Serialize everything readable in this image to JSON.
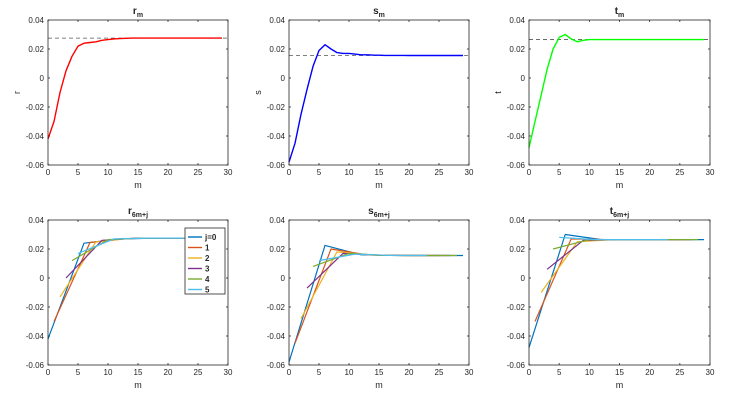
{
  "chart_data": [
    {
      "id": "rm",
      "type": "line",
      "title": "r",
      "title_sub": "m",
      "xlabel": "m",
      "ylabel": "r",
      "xlim": [
        0,
        30
      ],
      "ylim": [
        -0.06,
        0.04
      ],
      "xticks": [
        "0",
        "5",
        "10",
        "15",
        "20",
        "25",
        "30"
      ],
      "yticks": [
        "-0.06",
        "-0.04",
        "-0.02",
        "0",
        "0.02",
        "0.04"
      ],
      "reference": 0.0275,
      "series": [
        {
          "name": "r_m",
          "color": "#ff0000",
          "x": [
            0,
            1,
            2,
            3,
            4,
            5,
            6,
            7,
            8,
            9,
            10,
            11,
            12,
            13,
            14,
            15,
            16,
            17,
            18,
            19,
            20,
            21,
            22,
            23,
            24,
            25,
            26,
            27,
            28,
            29
          ],
          "y": [
            -0.042,
            -0.03,
            -0.01,
            0.005,
            0.015,
            0.022,
            0.024,
            0.0245,
            0.025,
            0.026,
            0.0265,
            0.027,
            0.0272,
            0.0274,
            0.0275,
            0.0275,
            0.0275,
            0.0275,
            0.0275,
            0.0275,
            0.0275,
            0.0275,
            0.0275,
            0.0275,
            0.0275,
            0.0275,
            0.0275,
            0.0275,
            0.0275,
            0.0275
          ]
        }
      ]
    },
    {
      "id": "sm",
      "type": "line",
      "title": "s",
      "title_sub": "m",
      "xlabel": "m",
      "ylabel": "s",
      "xlim": [
        0,
        30
      ],
      "ylim": [
        -0.06,
        0.04
      ],
      "xticks": [
        "0",
        "5",
        "10",
        "15",
        "20",
        "25",
        "30"
      ],
      "yticks": [
        "-0.06",
        "-0.04",
        "-0.02",
        "0",
        "0.02",
        "0.04"
      ],
      "reference": 0.0155,
      "series": [
        {
          "name": "s_m",
          "color": "#0000ff",
          "x": [
            0,
            1,
            2,
            3,
            4,
            5,
            6,
            7,
            8,
            9,
            10,
            11,
            12,
            13,
            14,
            15,
            16,
            17,
            18,
            19,
            20,
            21,
            22,
            23,
            24,
            25,
            26,
            27,
            28,
            29
          ],
          "y": [
            -0.058,
            -0.045,
            -0.025,
            -0.008,
            0.008,
            0.019,
            0.023,
            0.02,
            0.0175,
            0.017,
            0.017,
            0.0165,
            0.016,
            0.016,
            0.0158,
            0.0157,
            0.0156,
            0.0156,
            0.0156,
            0.0156,
            0.0155,
            0.0155,
            0.0155,
            0.0155,
            0.0155,
            0.0155,
            0.0155,
            0.0155,
            0.0155,
            0.0155
          ]
        }
      ]
    },
    {
      "id": "tm",
      "type": "line",
      "title": "t",
      "title_sub": "m",
      "xlabel": "m",
      "ylabel": "t",
      "xlim": [
        0,
        30
      ],
      "ylim": [
        -0.06,
        0.04
      ],
      "xticks": [
        "0",
        "5",
        "10",
        "15",
        "20",
        "25",
        "30"
      ],
      "yticks": [
        "-0.06",
        "-0.04",
        "-0.02",
        "0",
        "0.02",
        "0.04"
      ],
      "reference": 0.0265,
      "series": [
        {
          "name": "t_m",
          "color": "#00ff00",
          "x": [
            0,
            1,
            2,
            3,
            4,
            5,
            6,
            7,
            8,
            9,
            10,
            11,
            12,
            13,
            14,
            15,
            16,
            17,
            18,
            19,
            20,
            21,
            22,
            23,
            24,
            25,
            26,
            27,
            28,
            29
          ],
          "y": [
            -0.048,
            -0.03,
            -0.012,
            0.006,
            0.02,
            0.028,
            0.03,
            0.027,
            0.025,
            0.026,
            0.0265,
            0.0265,
            0.0265,
            0.0265,
            0.0265,
            0.0265,
            0.0265,
            0.0265,
            0.0265,
            0.0265,
            0.0265,
            0.0265,
            0.0265,
            0.0265,
            0.0265,
            0.0265,
            0.0265,
            0.0265,
            0.0265,
            0.0265
          ]
        }
      ]
    },
    {
      "id": "r6",
      "type": "line",
      "title": "r",
      "title_sub": "6m+j",
      "xlabel": "m",
      "ylabel": "",
      "xlim": [
        0,
        30
      ],
      "ylim": [
        -0.06,
        0.04
      ],
      "xticks": [
        "0",
        "5",
        "10",
        "15",
        "20",
        "25",
        "30"
      ],
      "yticks": [
        "-0.06",
        "-0.04",
        "-0.02",
        "0",
        "0.02",
        "0.04"
      ],
      "legend": {
        "position": "inside-left"
      },
      "series": [
        {
          "name": "j=0",
          "color": "#0072bd",
          "x": [
            0,
            6,
            12,
            18,
            24,
            29
          ],
          "y": [
            -0.042,
            0.024,
            0.027,
            0.0275,
            0.0275,
            0.0275
          ]
        },
        {
          "name": "1",
          "color": "#d95319",
          "x": [
            1,
            7,
            13,
            19,
            25
          ],
          "y": [
            -0.03,
            0.0245,
            0.0272,
            0.0275,
            0.0275
          ]
        },
        {
          "name": "2",
          "color": "#edb120",
          "x": [
            2,
            8,
            14,
            20,
            26
          ],
          "y": [
            -0.013,
            0.025,
            0.0274,
            0.0275,
            0.0275
          ]
        },
        {
          "name": "3",
          "color": "#7e2f8e",
          "x": [
            3,
            9,
            15,
            21,
            27
          ],
          "y": [
            0,
            0.026,
            0.0275,
            0.0275,
            0.0275
          ]
        },
        {
          "name": "4",
          "color": "#77ac30",
          "x": [
            4,
            10,
            16,
            22,
            28
          ],
          "y": [
            0.012,
            0.0265,
            0.0275,
            0.0275,
            0.0275
          ]
        },
        {
          "name": "5",
          "color": "#4dbeee",
          "x": [
            5,
            11,
            17,
            23
          ],
          "y": [
            0.017,
            0.027,
            0.0275,
            0.0275
          ]
        }
      ]
    },
    {
      "id": "s6",
      "type": "line",
      "title": "s",
      "title_sub": "6m+j",
      "xlabel": "m",
      "ylabel": "",
      "xlim": [
        0,
        30
      ],
      "ylim": [
        -0.06,
        0.04
      ],
      "xticks": [
        "0",
        "5",
        "10",
        "15",
        "20",
        "25",
        "30"
      ],
      "yticks": [
        "-0.06",
        "-0.04",
        "-0.02",
        "0",
        "0.02",
        "0.04"
      ],
      "series": [
        {
          "name": "j=0",
          "color": "#0072bd",
          "x": [
            0,
            6,
            12,
            18,
            24,
            29
          ],
          "y": [
            -0.058,
            0.0225,
            0.016,
            0.0155,
            0.0155,
            0.0155
          ]
        },
        {
          "name": "1",
          "color": "#d95319",
          "x": [
            1,
            7,
            13,
            19,
            25
          ],
          "y": [
            -0.045,
            0.02,
            0.016,
            0.0155,
            0.0155
          ]
        },
        {
          "name": "2",
          "color": "#edb120",
          "x": [
            2,
            8,
            14,
            20,
            26
          ],
          "y": [
            -0.028,
            0.018,
            0.0158,
            0.0155,
            0.0155
          ]
        },
        {
          "name": "3",
          "color": "#7e2f8e",
          "x": [
            3,
            9,
            15,
            21,
            27
          ],
          "y": [
            -0.007,
            0.017,
            0.0157,
            0.0155,
            0.0155
          ]
        },
        {
          "name": "4",
          "color": "#77ac30",
          "x": [
            4,
            10,
            16,
            22,
            28
          ],
          "y": [
            0.008,
            0.017,
            0.0156,
            0.0155,
            0.0155
          ]
        },
        {
          "name": "5",
          "color": "#4dbeee",
          "x": [
            5,
            11,
            17,
            23
          ],
          "y": [
            0.012,
            0.0165,
            0.0156,
            0.0155
          ]
        }
      ]
    },
    {
      "id": "t6",
      "type": "line",
      "title": "t",
      "title_sub": "6m+j",
      "xlabel": "m",
      "ylabel": "",
      "xlim": [
        0,
        30
      ],
      "ylim": [
        -0.06,
        0.04
      ],
      "xticks": [
        "0",
        "5",
        "10",
        "15",
        "20",
        "25",
        "30"
      ],
      "yticks": [
        "-0.06",
        "-0.04",
        "-0.02",
        "0",
        "0.02",
        "0.04"
      ],
      "series": [
        {
          "name": "j=0",
          "color": "#0072bd",
          "x": [
            0,
            6,
            12,
            18,
            24,
            29
          ],
          "y": [
            -0.048,
            0.03,
            0.0265,
            0.0265,
            0.0265,
            0.0265
          ]
        },
        {
          "name": "1",
          "color": "#d95319",
          "x": [
            1,
            7,
            13,
            19,
            25
          ],
          "y": [
            -0.03,
            0.027,
            0.0265,
            0.0265,
            0.0265
          ]
        },
        {
          "name": "2",
          "color": "#edb120",
          "x": [
            2,
            8,
            14,
            20,
            26
          ],
          "y": [
            -0.01,
            0.025,
            0.0265,
            0.0265,
            0.0265
          ]
        },
        {
          "name": "3",
          "color": "#7e2f8e",
          "x": [
            3,
            9,
            15,
            21,
            27
          ],
          "y": [
            0.006,
            0.026,
            0.0265,
            0.0265,
            0.0265
          ]
        },
        {
          "name": "4",
          "color": "#77ac30",
          "x": [
            4,
            10,
            16,
            22,
            28
          ],
          "y": [
            0.02,
            0.0265,
            0.0265,
            0.0265,
            0.0265
          ]
        },
        {
          "name": "5",
          "color": "#4dbeee",
          "x": [
            5,
            11,
            17,
            23
          ],
          "y": [
            0.028,
            0.0265,
            0.0265,
            0.0265
          ]
        }
      ]
    }
  ]
}
